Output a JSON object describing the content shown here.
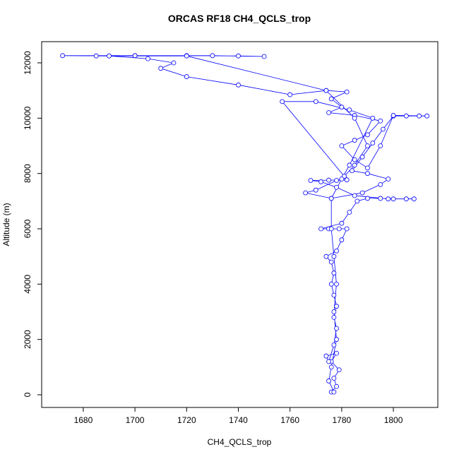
{
  "chart_data": {
    "type": "scatter",
    "title": "ORCAS RF18 CH4_QCLS_trop",
    "x_label": "CH4_QCLS_trop",
    "y_label": "Altitude (m)",
    "color": "#0000ff",
    "lines": true,
    "xlim": [
      1663.9,
      1817.2
    ],
    "ylim": [
      -459,
      12766
    ],
    "xticks": [
      1680,
      1700,
      1720,
      1740,
      1760,
      1780,
      1800
    ],
    "yticks": [
      0,
      2000,
      4000,
      6000,
      8000,
      10000,
      12000
    ],
    "x": [
      1776,
      1778,
      1777,
      1779,
      1776,
      1778,
      1774,
      1775,
      1777,
      1778,
      1777,
      1778,
      1777,
      1776,
      1777,
      1776,
      1774,
      1778,
      1780,
      1782,
      1779,
      1775,
      1772,
      1780,
      1783,
      1786,
      1790,
      1795,
      1800,
      1805,
      1808,
      1798,
      1785,
      1778,
      1772,
      1768,
      1775,
      1782,
      1778,
      1770,
      1766,
      1776,
      1788,
      1795,
      1798,
      1790,
      1784,
      1788,
      1792,
      1796,
      1800,
      1805,
      1810,
      1813,
      1800,
      1795,
      1790,
      1785,
      1780,
      1785,
      1790,
      1795,
      1785,
      1775,
      1780,
      1776,
      1782,
      1774,
      1760,
      1740,
      1720,
      1710,
      1715,
      1705,
      1690,
      1672,
      1700,
      1730,
      1750,
      1740,
      1720,
      1700,
      1685,
      1720,
      1774,
      1785,
      1790,
      1785,
      1781,
      1757,
      1770,
      1783,
      1792,
      1783,
      1780,
      1776,
      1776,
      1777,
      1778,
      1777,
      1778,
      1776,
      1775,
      1777
    ],
    "values": [
      100,
      300,
      600,
      900,
      1200,
      1500,
      1400,
      1200,
      1800,
      2400,
      2800,
      3200,
      3600,
      4000,
      4400,
      4800,
      5000,
      5200,
      5600,
      6000,
      6000,
      6000,
      6000,
      6200,
      6600,
      7000,
      7100,
      7100,
      7080,
      7080,
      7080,
      7080,
      7200,
      7500,
      7700,
      7750,
      7760,
      7770,
      7750,
      7400,
      7300,
      7100,
      7300,
      7600,
      7800,
      8000,
      8100,
      8600,
      9100,
      9600,
      10080,
      10080,
      10080,
      10080,
      10100,
      9000,
      8200,
      8500,
      9000,
      9200,
      9400,
      9900,
      10100,
      10200,
      10400,
      10700,
      10950,
      11000,
      10850,
      11200,
      11500,
      11800,
      12000,
      12150,
      12250,
      12260,
      12260,
      12260,
      12230,
      12250,
      12260,
      12260,
      12250,
      12250,
      11000,
      10000,
      9000,
      8300,
      7900,
      10600,
      10600,
      10300,
      10000,
      8300,
      7800,
      7100,
      6000,
      5000,
      4000,
      3000,
      2000,
      1000,
      500,
      100
    ]
  }
}
